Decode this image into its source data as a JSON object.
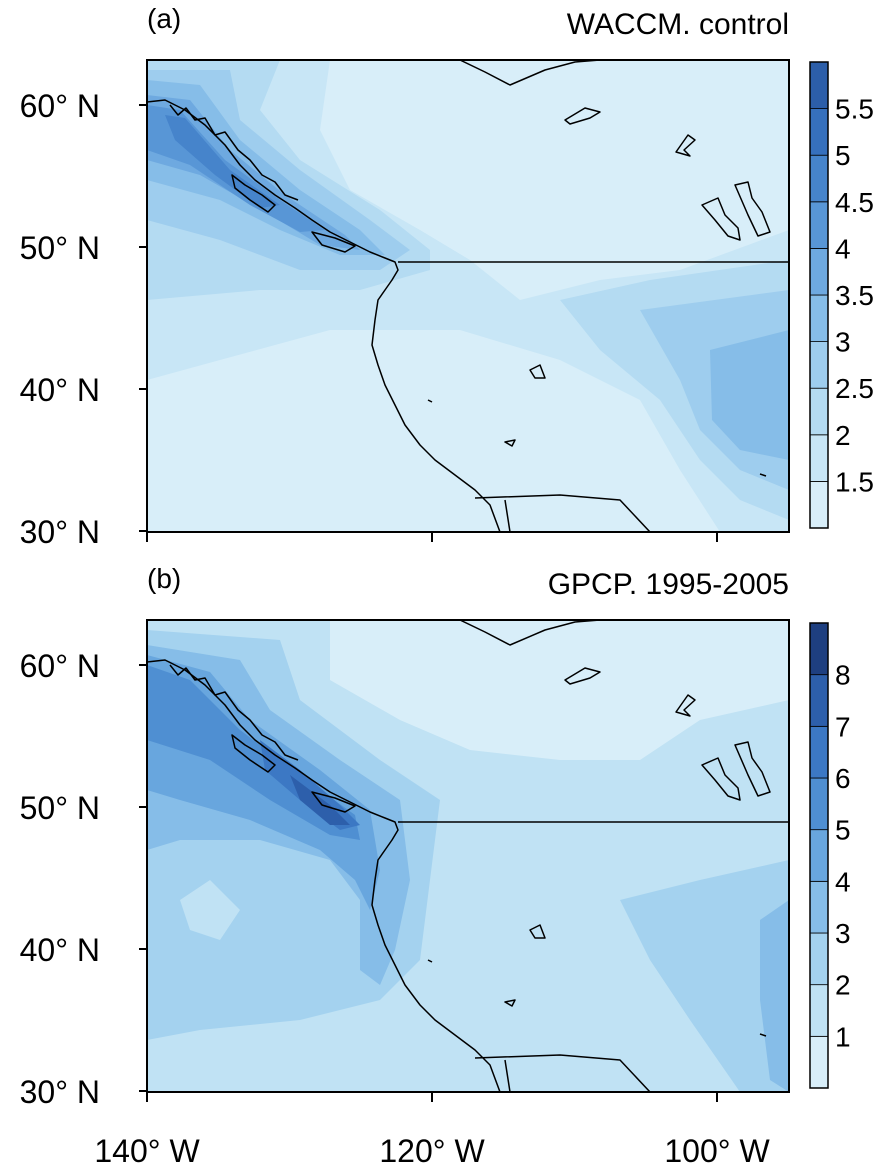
{
  "figure": {
    "x_ticks": [
      "140° W",
      "120° W",
      "100° W"
    ],
    "y_ticks": [
      "30° N",
      "40° N",
      "50° N",
      "60° N"
    ]
  },
  "panels": [
    {
      "panel_label": "(a)",
      "title": "WACCM. control",
      "colorbar_ticks": [
        "1.5",
        "2",
        "2.5",
        "3",
        "3.5",
        "4",
        "4.5",
        "5",
        "5.5"
      ],
      "colorbar_colors": [
        "#d8eef9",
        "#c8e6f6",
        "#b4dbf2",
        "#9ecdee",
        "#86bde8",
        "#6ea9e0",
        "#5896d6",
        "#4684cb",
        "#3670bd",
        "#2c5ea9"
      ]
    },
    {
      "panel_label": "(b)",
      "title": "GPCP. 1995-2005",
      "colorbar_ticks": [
        "1",
        "2",
        "3",
        "4",
        "5",
        "6",
        "7",
        "8"
      ],
      "colorbar_colors": [
        "#d8eef9",
        "#c0e2f4",
        "#a4d2ef",
        "#86bde8",
        "#68a6de",
        "#4f8fd2",
        "#3c78c4",
        "#2d5fab",
        "#1e3f80"
      ]
    }
  ]
}
